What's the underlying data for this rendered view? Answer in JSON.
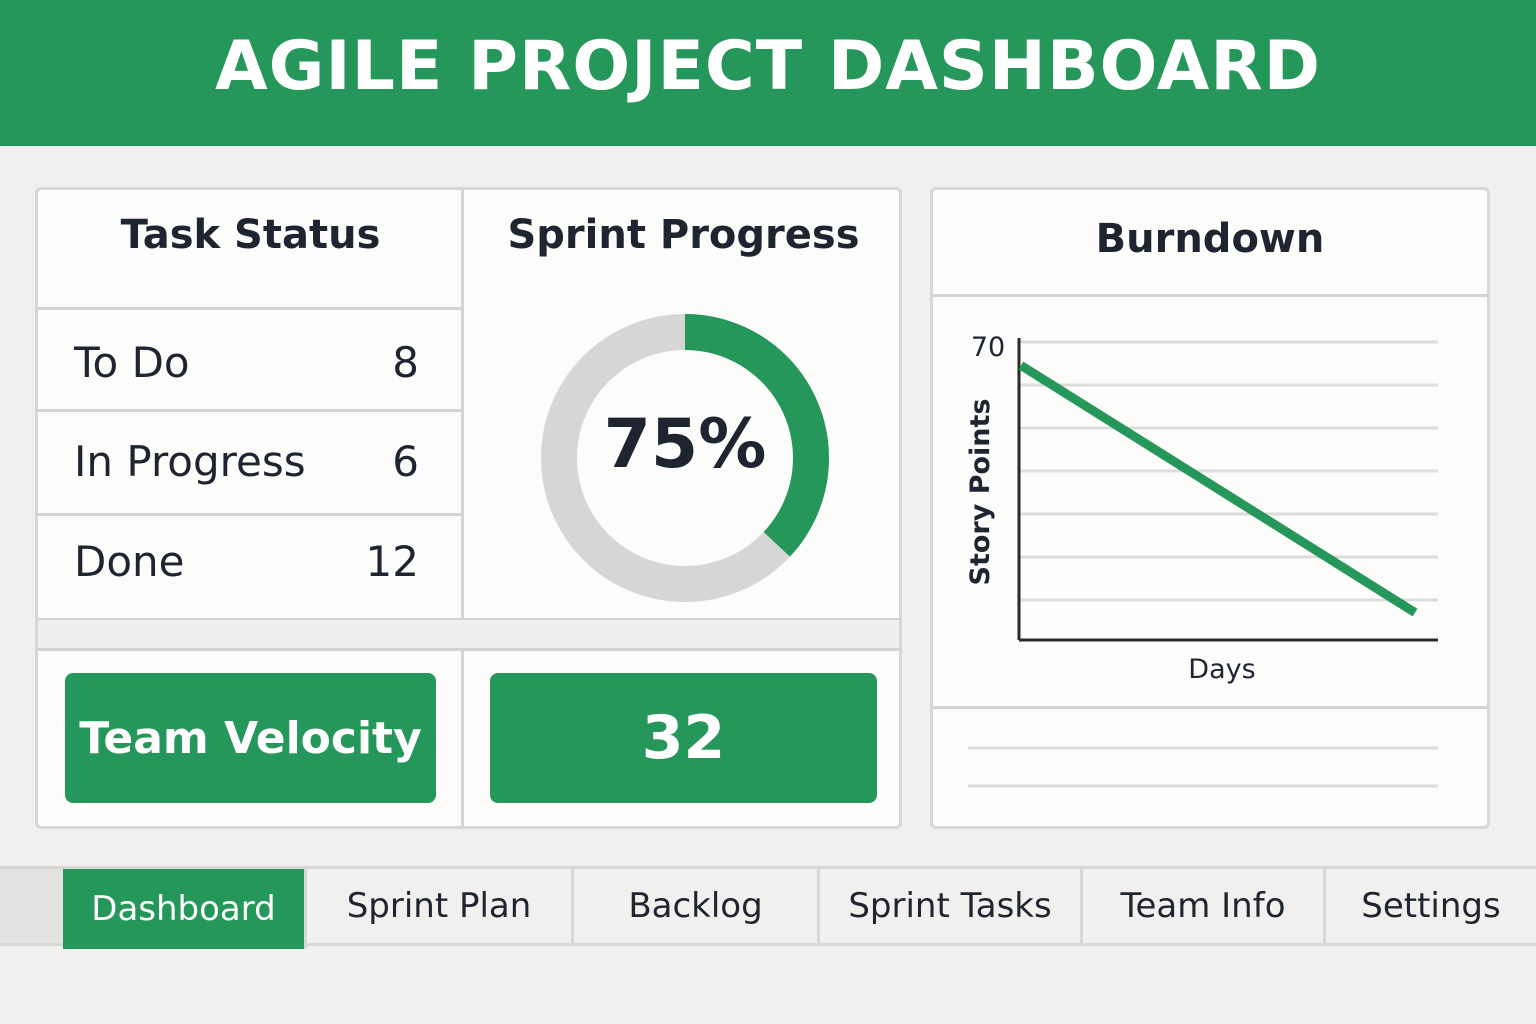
{
  "header": {
    "title": "AGILE PROJECT DASHBOARD"
  },
  "task_status": {
    "title": "Task Status",
    "rows": [
      {
        "label": "To Do",
        "value": "8"
      },
      {
        "label": "In Progress",
        "value": "6"
      },
      {
        "label": "Done",
        "value": "12"
      }
    ]
  },
  "sprint_progress": {
    "title": "Sprint Progress",
    "percent_label": "75%",
    "percent": 0.37
  },
  "velocity": {
    "label": "Team Velocity",
    "value": "32"
  },
  "burndown": {
    "title": "Burndown",
    "chart_data": {
      "type": "line",
      "xlabel": "Days",
      "ylabel": "Story Points",
      "y_tick_labels": [
        "70"
      ],
      "series": [
        {
          "x": [
            0,
            1
          ],
          "values": [
            70,
            7
          ]
        }
      ],
      "ylim": [
        0,
        77
      ],
      "grid": true
    }
  },
  "tabs": [
    {
      "label": "Dashboard",
      "active": true
    },
    {
      "label": "Sprint Plan",
      "active": false
    },
    {
      "label": "Backlog",
      "active": false
    },
    {
      "label": "Sprint Tasks",
      "active": false
    },
    {
      "label": "Team Info",
      "active": false
    },
    {
      "label": "Settings",
      "active": false
    }
  ],
  "colors": {
    "accent": "#26975a",
    "track": "#d6d6d4"
  }
}
